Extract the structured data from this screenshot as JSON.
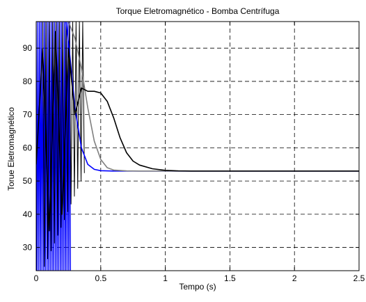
{
  "chart_data": {
    "type": "line",
    "title": "Torque Eletromagnético - Bomba Centrífuga",
    "xlabel": "Tempo (s)",
    "ylabel": "Torue Eletromagnético",
    "xlim": [
      0,
      2.5
    ],
    "ylim": [
      23,
      98
    ],
    "xticks": [
      0,
      0.5,
      1,
      1.5,
      2,
      2.5
    ],
    "xtick_labels": [
      "0",
      "0.5",
      "1",
      "1.5",
      "2",
      "2.5"
    ],
    "yticks": [
      30,
      40,
      50,
      60,
      70,
      80,
      90
    ],
    "ytick_labels": [
      "30",
      "40",
      "50",
      "60",
      "70",
      "80",
      "90"
    ],
    "grid": true,
    "grid_style": "dashed",
    "series": [
      {
        "color": "#000000",
        "points": [
          [
            0.0,
            55
          ],
          [
            0.05,
            90
          ],
          [
            0.1,
            35
          ],
          [
            0.15,
            95
          ],
          [
            0.2,
            40
          ],
          [
            0.25,
            90
          ],
          [
            0.3,
            70
          ],
          [
            0.35,
            78
          ],
          [
            0.4,
            77
          ],
          [
            0.45,
            77
          ],
          [
            0.5,
            76.5
          ],
          [
            0.55,
            74
          ],
          [
            0.6,
            69
          ],
          [
            0.65,
            63
          ],
          [
            0.7,
            58.5
          ],
          [
            0.75,
            56
          ],
          [
            0.8,
            54.8
          ],
          [
            0.9,
            53.7
          ],
          [
            1.0,
            53.2
          ],
          [
            1.1,
            53.05
          ],
          [
            1.2,
            53.0
          ],
          [
            1.5,
            53.0
          ],
          [
            2.0,
            53.0
          ],
          [
            2.5,
            53.0
          ]
        ]
      },
      {
        "color": "#808080",
        "points": [
          [
            0.0,
            98
          ],
          [
            0.25,
            98
          ],
          [
            0.3,
            93
          ],
          [
            0.35,
            84
          ],
          [
            0.4,
            72
          ],
          [
            0.45,
            62
          ],
          [
            0.5,
            56.5
          ],
          [
            0.55,
            54
          ],
          [
            0.6,
            53.3
          ],
          [
            0.7,
            53.05
          ],
          [
            0.8,
            53.0
          ],
          [
            2.5,
            53.0
          ]
        ]
      },
      {
        "color": "#0000ff",
        "points": [
          [
            0.0,
            98
          ],
          [
            0.23,
            98
          ],
          [
            0.26,
            88
          ],
          [
            0.3,
            72
          ],
          [
            0.35,
            60
          ],
          [
            0.4,
            55
          ],
          [
            0.45,
            53.5
          ],
          [
            0.5,
            53.1
          ],
          [
            0.6,
            53.0
          ],
          [
            2.5,
            53.0
          ]
        ]
      }
    ],
    "oscillation_bands": [
      {
        "color": "#0000ff",
        "x_start": 0.0,
        "x_end": 0.27,
        "low": 23,
        "high": 98
      },
      {
        "color": "#000000",
        "x_start": 0.05,
        "x_end": 0.38,
        "low": 23,
        "high": 98
      }
    ]
  }
}
